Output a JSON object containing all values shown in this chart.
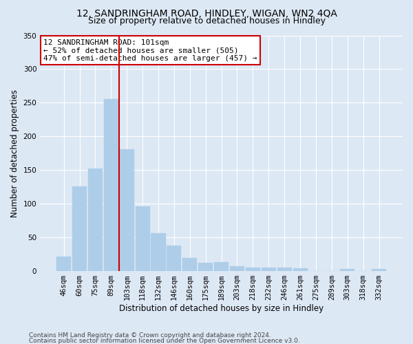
{
  "title1": "12, SANDRINGHAM ROAD, HINDLEY, WIGAN, WN2 4QA",
  "title2": "Size of property relative to detached houses in Hindley",
  "xlabel": "Distribution of detached houses by size in Hindley",
  "ylabel": "Number of detached properties",
  "categories": [
    "46sqm",
    "60sqm",
    "75sqm",
    "89sqm",
    "103sqm",
    "118sqm",
    "132sqm",
    "146sqm",
    "160sqm",
    "175sqm",
    "189sqm",
    "203sqm",
    "218sqm",
    "232sqm",
    "246sqm",
    "261sqm",
    "275sqm",
    "289sqm",
    "303sqm",
    "318sqm",
    "332sqm"
  ],
  "values": [
    22,
    126,
    152,
    256,
    181,
    96,
    56,
    38,
    19,
    12,
    13,
    7,
    5,
    5,
    5,
    4,
    0,
    0,
    3,
    0,
    3
  ],
  "bar_color": "#aecde8",
  "bar_edge_color": "#aecde8",
  "vline_x_index": 4,
  "vline_color": "#cc0000",
  "annotation_text": "12 SANDRINGHAM ROAD: 101sqm\n← 52% of detached houses are smaller (505)\n47% of semi-detached houses are larger (457) →",
  "annotation_box_color": "#ffffff",
  "annotation_box_edge": "#cc0000",
  "ylim": [
    0,
    350
  ],
  "yticks": [
    0,
    50,
    100,
    150,
    200,
    250,
    300,
    350
  ],
  "bg_color": "#dde8f5",
  "plot_bg_color": "#dde8f5",
  "footer1": "Contains HM Land Registry data © Crown copyright and database right 2024.",
  "footer2": "Contains public sector information licensed under the Open Government Licence v3.0.",
  "title_fontsize": 10,
  "subtitle_fontsize": 9,
  "axis_label_fontsize": 8.5,
  "tick_fontsize": 7.5,
  "annotation_fontsize": 8,
  "footer_fontsize": 6.5
}
